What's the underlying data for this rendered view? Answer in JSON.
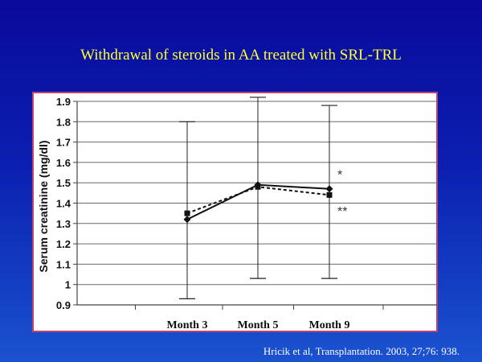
{
  "slide": {
    "title": "Withdrawal of steroids in AA treated with SRL-TRL",
    "citation": "Hricik et al, Transplantation. 2003, 27;76: 938.",
    "watermark_text": "",
    "colors": {
      "background_top": "#0a0a9c",
      "background_bottom": "#1a52cf",
      "title": "#ffff33",
      "frame_border": "#c04070"
    }
  },
  "chart_data": {
    "type": "line",
    "title": "",
    "xlabel": "",
    "ylabel": "Serum creatinine (mg/dl)",
    "categories": [
      "Month 3",
      "Month 5",
      "Month 9"
    ],
    "ylim": [
      0.9,
      1.9
    ],
    "yticks": [
      "0.9",
      "1",
      "1.1",
      "1.2",
      "1.3",
      "1.4",
      "1.5",
      "1.6",
      "1.7",
      "1.8",
      "1.9"
    ],
    "grid": true,
    "series": [
      {
        "marker": "diamond",
        "line_style": "solid",
        "color": "#111111",
        "values": [
          1.32,
          1.49,
          1.47
        ]
      },
      {
        "marker": "square",
        "line_style": "dashed",
        "color": "#111111",
        "values": [
          1.35,
          1.48,
          1.44
        ]
      }
    ],
    "error_bars": [
      {
        "category": "Month 3",
        "low": 0.93,
        "high": 1.8
      },
      {
        "category": "Month 5",
        "low": 1.03,
        "high": 1.92
      },
      {
        "category": "Month 9",
        "low": 1.03,
        "high": 1.88
      }
    ],
    "annotations": [
      {
        "text": "*",
        "category": "Month 9",
        "y": 1.55
      },
      {
        "text": "**",
        "category": "Month 9",
        "y": 1.37
      }
    ]
  }
}
